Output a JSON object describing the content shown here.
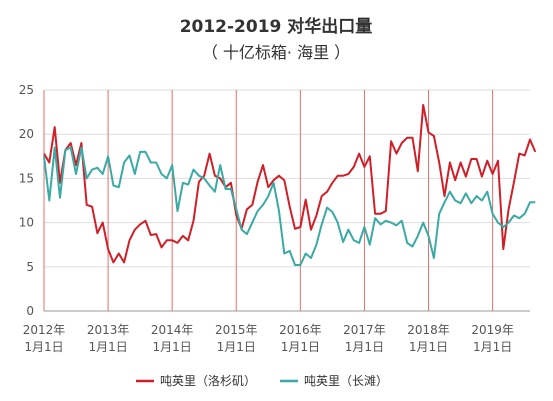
{
  "chart_data": {
    "type": "line",
    "title": "2012-2019 对华出口量",
    "subtitle": "（ 十亿标箱· 海里 ）",
    "ylim": [
      0,
      25
    ],
    "yticks": [
      0,
      5,
      10,
      15,
      20,
      25
    ],
    "xticks": [
      {
        "top": "2012年",
        "bottom": "1月1日"
      },
      {
        "top": "2013年",
        "bottom": "1月1日"
      },
      {
        "top": "2014年",
        "bottom": "1月1日"
      },
      {
        "top": "2015年",
        "bottom": "1月1日"
      },
      {
        "top": "2016年",
        "bottom": "1月1日"
      },
      {
        "top": "2017年",
        "bottom": "1月1日"
      },
      {
        "top": "2018年",
        "bottom": "1月1日"
      },
      {
        "top": "2019年",
        "bottom": "1月1日"
      }
    ],
    "months": 92,
    "grid": true,
    "legend_position": "bottom",
    "colors": {
      "grid": "#dddddd",
      "year_line": "#e07070",
      "axis": "#999999"
    },
    "series": [
      {
        "name": "吨英里（洛杉矶）",
        "color": "#d11f28",
        "values": [
          17.8,
          16.8,
          20.8,
          14.5,
          18.2,
          19.0,
          16.5,
          19.0,
          12.0,
          11.8,
          8.8,
          10.0,
          7.0,
          5.5,
          6.5,
          5.5,
          8.0,
          9.2,
          9.8,
          10.2,
          8.6,
          8.7,
          7.2,
          8.0,
          8.0,
          7.7,
          8.5,
          8.0,
          10.2,
          14.6,
          15.3,
          17.8,
          15.3,
          15.0,
          14.0,
          14.5,
          10.8,
          9.3,
          11.5,
          12.0,
          14.6,
          16.5,
          14.0,
          14.8,
          15.3,
          14.8,
          11.8,
          9.3,
          9.5,
          12.6,
          9.2,
          10.8,
          13.0,
          13.5,
          14.5,
          15.3,
          15.3,
          15.5,
          16.3,
          17.8,
          16.3,
          17.5,
          11.0,
          11.0,
          11.3,
          19.2,
          17.8,
          19.0,
          19.6,
          19.6,
          15.8,
          23.3,
          20.2,
          19.8,
          16.8,
          13.0,
          16.8,
          14.8,
          16.8,
          15.2,
          17.2,
          17.2,
          15.2,
          17.0,
          15.5,
          17.0,
          7.0,
          11.5,
          14.6,
          17.8,
          17.6,
          19.4,
          18.0
        ]
      },
      {
        "name": "吨英里（长滩）",
        "color": "#3aaaa4",
        "values": [
          17.5,
          12.5,
          18.5,
          12.8,
          18.2,
          18.5,
          15.5,
          18.5,
          15.0,
          16.0,
          16.2,
          15.5,
          17.5,
          14.2,
          14.0,
          16.8,
          17.6,
          15.5,
          18.0,
          18.0,
          16.8,
          16.8,
          15.5,
          15.0,
          16.5,
          11.3,
          14.5,
          14.3,
          16.0,
          15.3,
          15.0,
          14.2,
          13.5,
          16.5,
          13.8,
          13.8,
          11.5,
          9.2,
          8.7,
          10.0,
          11.3,
          12.0,
          13.0,
          14.5,
          11.3,
          6.5,
          6.8,
          5.2,
          5.2,
          6.5,
          6.0,
          7.5,
          9.8,
          11.7,
          11.2,
          10.0,
          7.8,
          9.2,
          8.0,
          7.7,
          9.5,
          7.5,
          10.5,
          9.8,
          10.2,
          10.0,
          9.7,
          10.2,
          7.7,
          7.3,
          8.5,
          10.0,
          8.5,
          6.0,
          11.0,
          12.3,
          13.5,
          12.5,
          12.2,
          13.3,
          12.2,
          13.0,
          12.5,
          13.5,
          11.0,
          10.0,
          9.5,
          10.0,
          10.8,
          10.5,
          11.0,
          12.3,
          12.3
        ]
      }
    ]
  }
}
